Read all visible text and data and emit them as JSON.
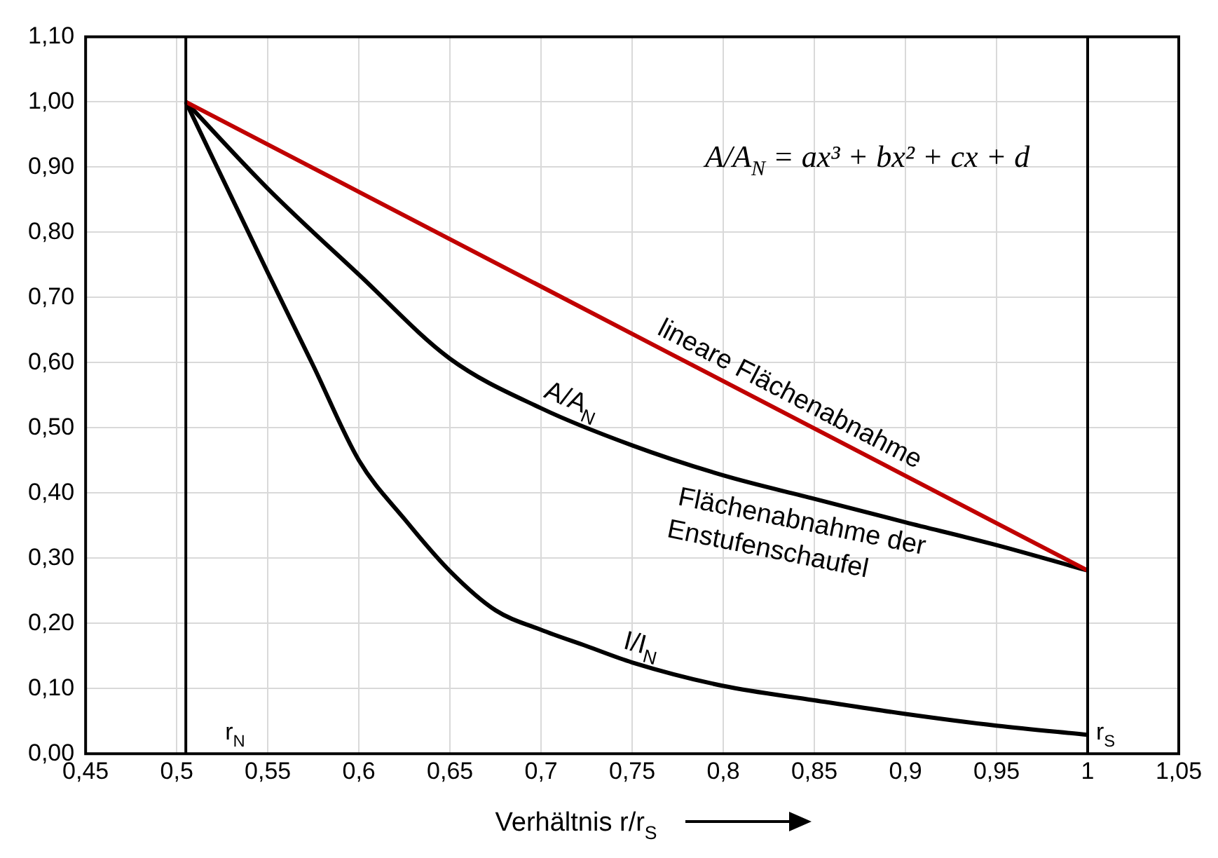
{
  "chart_data": {
    "type": "line",
    "xlabel": "Verhältnis r/r$_{S}$",
    "xlim": [
      0.45,
      1.05
    ],
    "ylim": [
      0,
      1.1
    ],
    "xticks": [
      {
        "value": 0.45,
        "label": "0,45"
      },
      {
        "value": 0.5,
        "label": "0,5"
      },
      {
        "value": 0.55,
        "label": "0,55"
      },
      {
        "value": 0.6,
        "label": "0,6"
      },
      {
        "value": 0.65,
        "label": "0,65"
      },
      {
        "value": 0.7,
        "label": "0,7"
      },
      {
        "value": 0.75,
        "label": "0,75"
      },
      {
        "value": 0.8,
        "label": "0,8"
      },
      {
        "value": 0.85,
        "label": "0,85"
      },
      {
        "value": 0.9,
        "label": "0,9"
      },
      {
        "value": 0.95,
        "label": "0,95"
      },
      {
        "value": 1,
        "label": "1"
      },
      {
        "value": 1.05,
        "label": "1,05"
      }
    ],
    "yticks": [
      {
        "value": 0,
        "label": "0,00"
      },
      {
        "value": 0.1,
        "label": "0,10"
      },
      {
        "value": 0.2,
        "label": "0,20"
      },
      {
        "value": 0.3,
        "label": "0,30"
      },
      {
        "value": 0.4,
        "label": "0,40"
      },
      {
        "value": 0.5,
        "label": "0,50"
      },
      {
        "value": 0.6,
        "label": "0,60"
      },
      {
        "value": 0.7,
        "label": "0,70"
      },
      {
        "value": 0.8,
        "label": "0,80"
      },
      {
        "value": 0.9,
        "label": "0,90"
      },
      {
        "value": 1,
        "label": "1,00"
      },
      {
        "value": 1.1,
        "label": "1,10"
      }
    ],
    "grid": true,
    "marker": "none",
    "line_style": "solid",
    "legend": false,
    "series": [
      {
        "name": "lineare Flächenabnahme",
        "color": "#c00000",
        "x": [
          0.505,
          1.0
        ],
        "values": [
          1.0,
          0.281
        ]
      },
      {
        "name": "A/A$_{N}$",
        "color": "#000000",
        "x": [
          0.505,
          0.55,
          0.6,
          0.65,
          0.7,
          0.75,
          0.8,
          0.85,
          0.9,
          0.95,
          1.0
        ],
        "values": [
          1.0,
          0.867,
          0.735,
          0.606,
          0.53,
          0.473,
          0.427,
          0.391,
          0.355,
          0.32,
          0.281
        ]
      },
      {
        "name": "I/I$_{N}$",
        "color": "#000000",
        "x": [
          0.505,
          0.55,
          0.575,
          0.6,
          0.625,
          0.65,
          0.675,
          0.7,
          0.725,
          0.75,
          0.8,
          0.85,
          0.9,
          0.95,
          1.0
        ],
        "values": [
          1.0,
          0.738,
          0.595,
          0.45,
          0.36,
          0.28,
          0.22,
          0.19,
          0.165,
          0.14,
          0.104,
          0.082,
          0.061,
          0.043,
          0.029
        ]
      }
    ],
    "ref_lines": [
      {
        "axis": "x",
        "value": 0.505,
        "label": "r$_{N}$",
        "color": "#000000"
      },
      {
        "axis": "x",
        "value": 1.0,
        "label": "r$_{S}$",
        "color": "#000000"
      }
    ],
    "annotations": [
      "A/A$_{N}$ = ax³ + bx² + cx + d",
      {
        "text": "Flächenabnahme der Enstufenschaufel",
        "x": 0.85,
        "y": 0.391
      }
    ]
  }
}
